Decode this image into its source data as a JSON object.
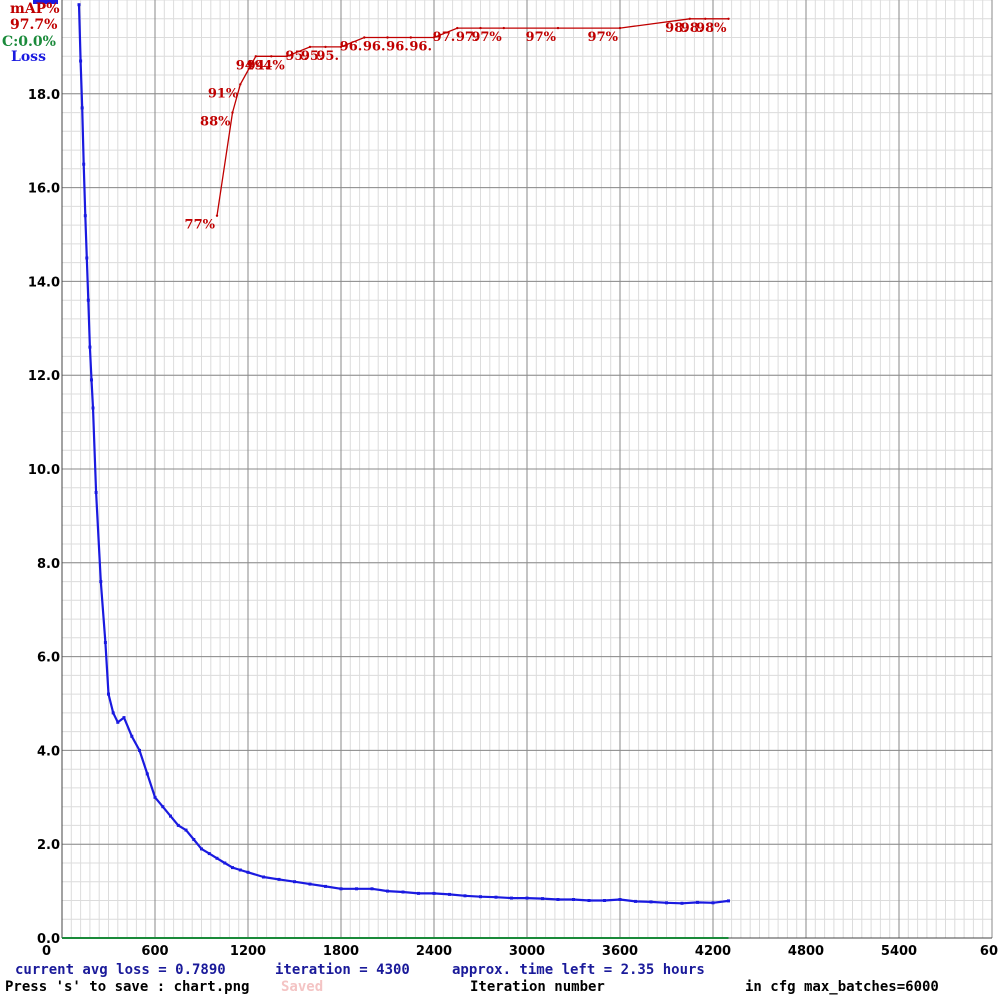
{
  "chart_data": {
    "type": "line",
    "xlabel": "Iteration number",
    "ylabel": "",
    "xlim": [
      0,
      6000
    ],
    "ylim": [
      0,
      20
    ],
    "x_ticks": [
      "0",
      "600",
      "1200",
      "1800",
      "2400",
      "3000",
      "3600",
      "4200",
      "4800",
      "5400",
      "60"
    ],
    "y_ticks": [
      "0.0",
      "2.0",
      "4.0",
      "6.0",
      "8.0",
      "10.0",
      "12.0",
      "14.0",
      "16.0",
      "18.0"
    ],
    "grid": true,
    "legend": {
      "placement": "top-left",
      "map_label": "mAP%",
      "map_value": "97.7%",
      "c_label": "C:0.0%",
      "loss_label": "Loss",
      "colors": {
        "map": "#c00000",
        "c": "#1a8a3a",
        "loss": "#1a1ae0"
      }
    },
    "series": [
      {
        "name": "Loss",
        "color": "#1a1ae0",
        "x": [
          110,
          120,
          130,
          140,
          150,
          160,
          170,
          180,
          190,
          200,
          220,
          250,
          280,
          300,
          330,
          360,
          400,
          450,
          500,
          550,
          600,
          650,
          700,
          750,
          800,
          850,
          900,
          950,
          1000,
          1050,
          1100,
          1150,
          1200,
          1300,
          1400,
          1500,
          1600,
          1700,
          1800,
          1900,
          2000,
          2100,
          2200,
          2300,
          2400,
          2500,
          2600,
          2700,
          2800,
          2900,
          3000,
          3100,
          3200,
          3300,
          3400,
          3500,
          3600,
          3700,
          3800,
          3900,
          4000,
          4100,
          4200,
          4300
        ],
        "y": [
          19.9,
          18.7,
          17.7,
          16.5,
          15.4,
          14.5,
          13.6,
          12.6,
          11.9,
          11.3,
          9.5,
          7.6,
          6.3,
          5.2,
          4.8,
          4.6,
          4.7,
          4.3,
          4.0,
          3.5,
          3.0,
          2.8,
          2.6,
          2.4,
          2.3,
          2.1,
          1.9,
          1.8,
          1.7,
          1.6,
          1.5,
          1.45,
          1.4,
          1.3,
          1.25,
          1.2,
          1.15,
          1.1,
          1.05,
          1.05,
          1.05,
          1.0,
          0.98,
          0.95,
          0.95,
          0.93,
          0.9,
          0.88,
          0.87,
          0.85,
          0.85,
          0.84,
          0.82,
          0.82,
          0.8,
          0.8,
          0.82,
          0.78,
          0.77,
          0.75,
          0.74,
          0.76,
          0.75,
          0.79
        ]
      },
      {
        "name": "mAP%",
        "color": "#c00000",
        "scale": "percent",
        "points": [
          {
            "x": 1000,
            "map": 77,
            "label": "77%"
          },
          {
            "x": 1100,
            "map": 88,
            "label": "88%"
          },
          {
            "x": 1150,
            "map": 91,
            "label": "91%"
          },
          {
            "x": 1250,
            "map": 94,
            "label": "94"
          },
          {
            "x": 1350,
            "map": 94,
            "label": "94."
          },
          {
            "x": 1450,
            "map": 94,
            "label": "94%"
          },
          {
            "x": 1600,
            "map": 95,
            "label": "95."
          },
          {
            "x": 1700,
            "map": 95,
            "label": "95."
          },
          {
            "x": 1800,
            "map": 95,
            "label": "95."
          },
          {
            "x": 1950,
            "map": 96,
            "label": "96."
          },
          {
            "x": 2100,
            "map": 96,
            "label": "96."
          },
          {
            "x": 2250,
            "map": 96,
            "label": "96."
          },
          {
            "x": 2400,
            "map": 96,
            "label": "96."
          },
          {
            "x": 2550,
            "map": 97,
            "label": "97."
          },
          {
            "x": 2700,
            "map": 97,
            "label": "97."
          },
          {
            "x": 2850,
            "map": 97,
            "label": "97%"
          },
          {
            "x": 3200,
            "map": 97,
            "label": "97%"
          },
          {
            "x": 3600,
            "map": 97,
            "label": "97%"
          },
          {
            "x": 4050,
            "map": 98,
            "label": "98."
          },
          {
            "x": 4150,
            "map": 98,
            "label": "98."
          },
          {
            "x": 4300,
            "map": 98,
            "label": "98%"
          }
        ]
      }
    ],
    "status": {
      "current_avg_loss": "current avg loss = 0.7890",
      "iteration": "iteration = 4300",
      "time_left": "approx. time left = 2.35 hours",
      "save_hint": "Press 's' to save : chart.png",
      "faint_text": "Saved",
      "xlabel": "Iteration number",
      "max_batches": "in cfg max_batches=6000"
    }
  }
}
